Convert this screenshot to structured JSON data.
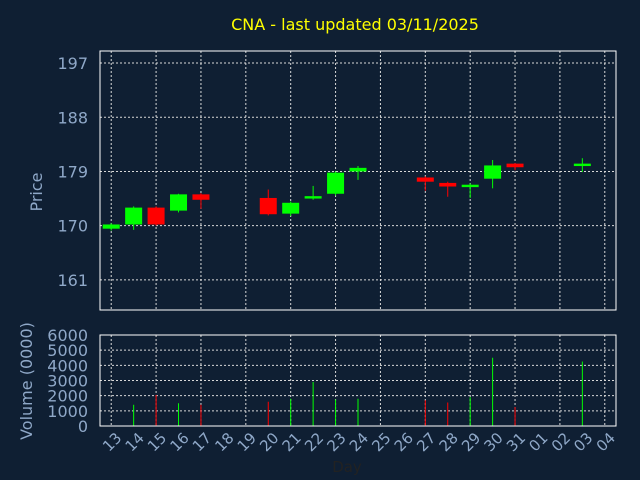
{
  "chart_data": [
    {
      "type": "candlestick",
      "title": "CNA - last updated 03/11/2025",
      "ylabel": "Price",
      "ylim": [
        156,
        199
      ],
      "yticks": [
        161,
        170,
        179,
        188,
        197
      ],
      "grid": true,
      "colors": {
        "up": "#00ff00",
        "down": "#ff0000"
      },
      "categories": [
        "13",
        "14",
        "15",
        "16",
        "17",
        "18",
        "19",
        "20",
        "21",
        "22",
        "23",
        "24",
        "25",
        "26",
        "27",
        "28",
        "29",
        "30",
        "31",
        "01",
        "02",
        "03",
        "04"
      ],
      "candles": [
        {
          "x": "13",
          "open": 169.5,
          "close": 170.2,
          "high": 170.4,
          "low": 169.2,
          "dir": "up"
        },
        {
          "x": "14",
          "open": 170.2,
          "close": 173.0,
          "high": 173.2,
          "low": 169.3,
          "dir": "up"
        },
        {
          "x": "15",
          "open": 173.0,
          "close": 170.2,
          "high": 173.2,
          "low": 170.0,
          "dir": "down"
        },
        {
          "x": "16",
          "open": 172.5,
          "close": 175.2,
          "high": 175.3,
          "low": 172.2,
          "dir": "up"
        },
        {
          "x": "17",
          "open": 175.2,
          "close": 174.3,
          "high": 175.4,
          "low": 172.8,
          "dir": "down"
        },
        {
          "x": "20",
          "open": 174.6,
          "close": 171.9,
          "high": 176.0,
          "low": 171.7,
          "dir": "down"
        },
        {
          "x": "21",
          "open": 172.0,
          "close": 173.8,
          "high": 174.0,
          "low": 171.6,
          "dir": "up"
        },
        {
          "x": "22",
          "open": 174.5,
          "close": 174.9,
          "high": 176.6,
          "low": 174.3,
          "dir": "up"
        },
        {
          "x": "23",
          "open": 175.3,
          "close": 178.8,
          "high": 179.0,
          "low": 175.0,
          "dir": "up"
        },
        {
          "x": "24",
          "open": 179.0,
          "close": 179.6,
          "high": 179.9,
          "low": 177.6,
          "dir": "up"
        },
        {
          "x": "27",
          "open": 178.0,
          "close": 177.3,
          "high": 178.2,
          "low": 175.8,
          "dir": "down"
        },
        {
          "x": "28",
          "open": 177.1,
          "close": 176.5,
          "high": 177.3,
          "low": 174.8,
          "dir": "down"
        },
        {
          "x": "29",
          "open": 176.4,
          "close": 176.8,
          "high": 177.0,
          "low": 174.6,
          "dir": "up"
        },
        {
          "x": "30",
          "open": 177.8,
          "close": 180.0,
          "high": 180.9,
          "low": 176.2,
          "dir": "up"
        },
        {
          "x": "31",
          "open": 180.3,
          "close": 179.7,
          "high": 180.4,
          "low": 179.2,
          "dir": "down"
        },
        {
          "x": "03",
          "open": 179.9,
          "close": 180.3,
          "high": 181.2,
          "low": 178.9,
          "dir": "up"
        }
      ]
    },
    {
      "type": "bar",
      "ylabel": "Volume (0000)",
      "xlabel": "Day",
      "ylim": [
        0,
        6000
      ],
      "yticks": [
        0,
        1000,
        2000,
        3000,
        4000,
        5000,
        6000
      ],
      "grid": true,
      "categories": [
        "13",
        "14",
        "15",
        "16",
        "17",
        "18",
        "19",
        "20",
        "21",
        "22",
        "23",
        "24",
        "25",
        "26",
        "27",
        "28",
        "29",
        "30",
        "31",
        "01",
        "02",
        "03",
        "04"
      ],
      "bars": [
        {
          "x": "14",
          "value": 1400,
          "dir": "up"
        },
        {
          "x": "15",
          "value": 2050,
          "dir": "down"
        },
        {
          "x": "16",
          "value": 1500,
          "dir": "up"
        },
        {
          "x": "17",
          "value": 1400,
          "dir": "down"
        },
        {
          "x": "20",
          "value": 1600,
          "dir": "down"
        },
        {
          "x": "21",
          "value": 1800,
          "dir": "up"
        },
        {
          "x": "22",
          "value": 2900,
          "dir": "up"
        },
        {
          "x": "23",
          "value": 1750,
          "dir": "up"
        },
        {
          "x": "24",
          "value": 1800,
          "dir": "up"
        },
        {
          "x": "27",
          "value": 1700,
          "dir": "down"
        },
        {
          "x": "28",
          "value": 1550,
          "dir": "down"
        },
        {
          "x": "29",
          "value": 1900,
          "dir": "up"
        },
        {
          "x": "30",
          "value": 4500,
          "dir": "up"
        },
        {
          "x": "31",
          "value": 1250,
          "dir": "down"
        },
        {
          "x": "03",
          "value": 4250,
          "dir": "up"
        }
      ]
    }
  ]
}
